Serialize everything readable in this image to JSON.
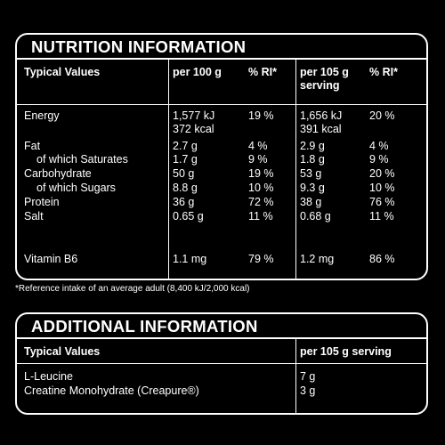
{
  "nutrition": {
    "title": "NUTRITION INFORMATION",
    "headers": {
      "typical": "Typical Values",
      "per100": "per 100 g",
      "ri1": "% RI*",
      "perServing_line1": "per 105 g",
      "perServing_line2": "serving",
      "ri2": "% RI*"
    },
    "rows": [
      {
        "label": "Energy",
        "indent": false,
        "per100": "1,577 kJ",
        "ri1": "19 %",
        "perServing": "1,656 kJ",
        "ri2": "20 %"
      },
      {
        "label": "",
        "indent": false,
        "per100": "372 kcal",
        "ri1": "",
        "perServing": "391 kcal",
        "ri2": ""
      },
      {
        "label": "Fat",
        "indent": false,
        "per100": "2.7 g",
        "ri1": "4 %",
        "perServing": "2.9 g",
        "ri2": "4 %"
      },
      {
        "label": "of which Saturates",
        "indent": true,
        "per100": "1.7 g",
        "ri1": "9 %",
        "perServing": "1.8 g",
        "ri2": "9 %"
      },
      {
        "label": "Carbohydrate",
        "indent": false,
        "per100": "50 g",
        "ri1": "19 %",
        "perServing": "53 g",
        "ri2": "20 %"
      },
      {
        "label": "of which Sugars",
        "indent": true,
        "per100": "8.8 g",
        "ri1": "10 %",
        "perServing": "9.3 g",
        "ri2": "10 %"
      },
      {
        "label": "Protein",
        "indent": false,
        "per100": "36 g",
        "ri1": "72 %",
        "perServing": "38 g",
        "ri2": "76 %"
      },
      {
        "label": "Salt",
        "indent": false,
        "per100": "0.65 g",
        "ri1": "11 %",
        "perServing": "0.68 g",
        "ri2": "11 %"
      },
      {
        "label": "Vitamin B6",
        "indent": false,
        "per100": "1.1 mg",
        "ri1": "79 %",
        "perServing": "1.2 mg",
        "ri2": "86 %"
      }
    ],
    "footnote": "*Reference intake of an average adult (8,400 kJ/2,000 kcal)"
  },
  "additional": {
    "title": "ADDITIONAL INFORMATION",
    "headers": {
      "typical": "Typical Values",
      "perServing": "per 105 g serving"
    },
    "rows": [
      {
        "label": "L-Leucine",
        "perServing": "7 g"
      },
      {
        "label": "Creatine Monohydrate (Creapure®)",
        "perServing": "3 g"
      }
    ]
  }
}
